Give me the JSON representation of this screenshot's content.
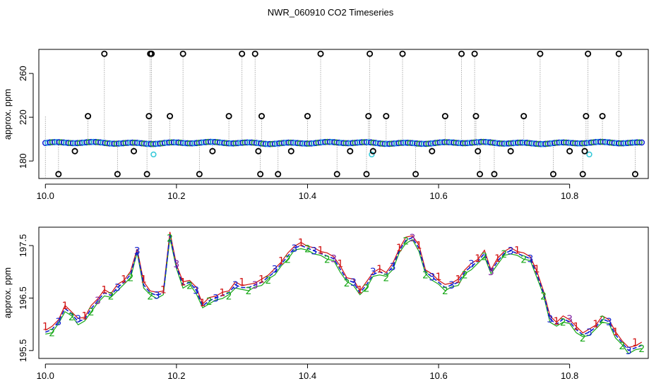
{
  "chart_data": [
    {
      "type": "scatter",
      "title": "NWR_060910  CO2 Timeseries",
      "xlabel": "",
      "ylabel": "approx. ppm",
      "xlim": [
        9.99,
        10.92
      ],
      "ylim": [
        164,
        282
      ],
      "x_ticks": [
        10.0,
        10.2,
        10.4,
        10.6,
        10.8
      ],
      "x_tick_labels": [
        "10.0",
        "10.2",
        "10.4",
        "10.6",
        "10.8"
      ],
      "y_ticks": [
        180,
        220,
        260
      ],
      "y_tick_labels": [
        "180",
        "220",
        "260"
      ],
      "baseline": {
        "x_start": 10.0,
        "x_end": 10.91,
        "value": 196.5
      },
      "low_outliers": [
        {
          "x": 10.165,
          "y": 186
        },
        {
          "x": 10.498,
          "y": 186
        },
        {
          "x": 10.83,
          "y": 186
        }
      ],
      "spikes": [
        {
          "x": 10.02,
          "y": 168
        },
        {
          "x": 10.045,
          "y": 189
        },
        {
          "x": 10.065,
          "y": 221
        },
        {
          "x": 10.09,
          "y": 278
        },
        {
          "x": 10.11,
          "y": 168
        },
        {
          "x": 10.135,
          "y": 189
        },
        {
          "x": 10.155,
          "y": 168
        },
        {
          "x": 10.158,
          "y": 221
        },
        {
          "x": 10.16,
          "y": 278
        },
        {
          "x": 10.162,
          "y": 278
        },
        {
          "x": 10.19,
          "y": 221
        },
        {
          "x": 10.21,
          "y": 278
        },
        {
          "x": 10.235,
          "y": 168
        },
        {
          "x": 10.255,
          "y": 189
        },
        {
          "x": 10.28,
          "y": 221
        },
        {
          "x": 10.3,
          "y": 278
        },
        {
          "x": 10.32,
          "y": 278
        },
        {
          "x": 10.325,
          "y": 189
        },
        {
          "x": 10.328,
          "y": 168
        },
        {
          "x": 10.33,
          "y": 221
        },
        {
          "x": 10.355,
          "y": 168
        },
        {
          "x": 10.375,
          "y": 189
        },
        {
          "x": 10.4,
          "y": 221
        },
        {
          "x": 10.42,
          "y": 278
        },
        {
          "x": 10.445,
          "y": 168
        },
        {
          "x": 10.465,
          "y": 189
        },
        {
          "x": 10.49,
          "y": 168
        },
        {
          "x": 10.493,
          "y": 221
        },
        {
          "x": 10.495,
          "y": 278
        },
        {
          "x": 10.5,
          "y": 189
        },
        {
          "x": 10.52,
          "y": 221
        },
        {
          "x": 10.545,
          "y": 278
        },
        {
          "x": 10.565,
          "y": 168
        },
        {
          "x": 10.59,
          "y": 189
        },
        {
          "x": 10.61,
          "y": 221
        },
        {
          "x": 10.635,
          "y": 278
        },
        {
          "x": 10.655,
          "y": 278
        },
        {
          "x": 10.657,
          "y": 221
        },
        {
          "x": 10.66,
          "y": 189
        },
        {
          "x": 10.663,
          "y": 168
        },
        {
          "x": 10.685,
          "y": 168
        },
        {
          "x": 10.71,
          "y": 189
        },
        {
          "x": 10.73,
          "y": 221
        },
        {
          "x": 10.755,
          "y": 278
        },
        {
          "x": 10.775,
          "y": 168
        },
        {
          "x": 10.8,
          "y": 189
        },
        {
          "x": 10.82,
          "y": 168
        },
        {
          "x": 10.823,
          "y": 189
        },
        {
          "x": 10.825,
          "y": 221
        },
        {
          "x": 10.828,
          "y": 278
        },
        {
          "x": 10.85,
          "y": 221
        },
        {
          "x": 10.875,
          "y": 278
        },
        {
          "x": 10.9,
          "y": 168
        }
      ]
    },
    {
      "type": "line",
      "title": "",
      "xlabel": "",
      "ylabel": "approx. ppm",
      "xlim": [
        9.99,
        10.92
      ],
      "ylim": [
        195.35,
        197.85
      ],
      "x_ticks": [
        10.0,
        10.2,
        10.4,
        10.6,
        10.8
      ],
      "x_tick_labels": [
        "10.0",
        "10.2",
        "10.4",
        "10.6",
        "10.8"
      ],
      "y_ticks": [
        195.5,
        196.5,
        197.5
      ],
      "y_tick_labels": [
        "195.5",
        "196.5",
        "197.5"
      ],
      "series_labels": [
        "1",
        "2",
        "3"
      ],
      "colors": {
        "series1": "#d01010",
        "series2": "#18a818",
        "series3": "#1020d0",
        "series3_alt": "#8020a0"
      },
      "series_offsets": [
        0.06,
        -0.06,
        0.0
      ],
      "series": [
        {
          "name": "3",
          "x": [
            10.0,
            10.01,
            10.02,
            10.03,
            10.04,
            10.05,
            10.06,
            10.07,
            10.08,
            10.09,
            10.1,
            10.11,
            10.12,
            10.13,
            10.14,
            10.15,
            10.16,
            10.17,
            10.18,
            10.19,
            10.2,
            10.21,
            10.22,
            10.23,
            10.24,
            10.25,
            10.26,
            10.27,
            10.28,
            10.29,
            10.3,
            10.31,
            10.32,
            10.33,
            10.34,
            10.35,
            10.36,
            10.37,
            10.38,
            10.39,
            10.4,
            10.41,
            10.42,
            10.43,
            10.44,
            10.45,
            10.46,
            10.47,
            10.48,
            10.49,
            10.5,
            10.51,
            10.52,
            10.53,
            10.54,
            10.55,
            10.56,
            10.57,
            10.58,
            10.59,
            10.6,
            10.61,
            10.62,
            10.63,
            10.64,
            10.65,
            10.66,
            10.67,
            10.68,
            10.69,
            10.7,
            10.71,
            10.72,
            10.73,
            10.74,
            10.75,
            10.76,
            10.77,
            10.78,
            10.79,
            10.8,
            10.81,
            10.82,
            10.83,
            10.84,
            10.85,
            10.86,
            10.87,
            10.88,
            10.89,
            10.9,
            10.91
          ],
          "values": [
            195.85,
            195.9,
            196.05,
            196.3,
            196.2,
            196.05,
            196.1,
            196.3,
            196.45,
            196.6,
            196.55,
            196.7,
            196.8,
            196.95,
            197.4,
            196.75,
            196.6,
            196.55,
            196.6,
            197.7,
            197.1,
            196.75,
            196.8,
            196.65,
            196.35,
            196.45,
            196.5,
            196.55,
            196.6,
            196.75,
            196.7,
            196.7,
            196.75,
            196.8,
            196.9,
            197.0,
            197.15,
            197.3,
            197.45,
            197.5,
            197.45,
            197.4,
            197.35,
            197.3,
            197.25,
            197.05,
            196.85,
            196.8,
            196.6,
            196.75,
            196.95,
            197.0,
            196.95,
            197.1,
            197.4,
            197.6,
            197.65,
            197.45,
            197.0,
            196.9,
            196.8,
            196.7,
            196.75,
            196.8,
            197.0,
            197.1,
            197.2,
            197.35,
            197.0,
            197.2,
            197.35,
            197.4,
            197.35,
            197.3,
            197.25,
            196.95,
            196.6,
            196.1,
            196.0,
            196.1,
            196.05,
            195.9,
            195.8,
            195.85,
            195.95,
            196.1,
            196.05,
            195.8,
            195.65,
            195.5,
            195.55,
            195.6
          ]
        }
      ]
    }
  ]
}
